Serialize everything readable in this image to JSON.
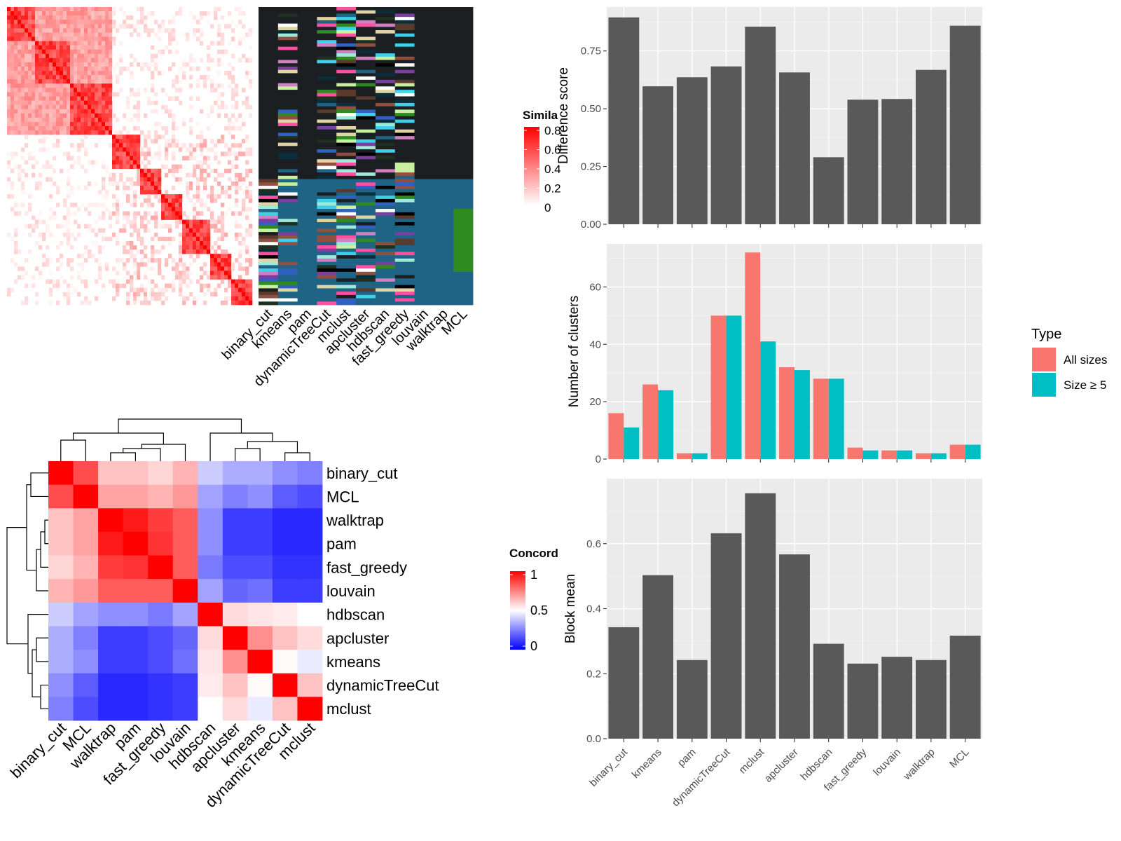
{
  "chart_data": [
    {
      "type": "heatmap",
      "panel": "similarity-heatmap",
      "legend": {
        "title": "Simila",
        "ticks": [
          "0.8",
          "0.6",
          "0.4",
          "0.2",
          "0"
        ],
        "colors": [
          "#ffffff",
          "#ff0000"
        ]
      },
      "annotation_columns": [
        "binary_cut",
        "kmeans",
        "pam",
        "dynamicTreeCut",
        "mclust",
        "apcluster",
        "hdbscan",
        "fast_greedy",
        "louvain",
        "walktrap",
        "MCL"
      ]
    },
    {
      "type": "heatmap",
      "panel": "concordance-heatmap",
      "legend": {
        "title": "Concord",
        "ticks": [
          "1",
          "0.5",
          "0"
        ],
        "colors": [
          "#0000ff",
          "#ffffff",
          "#ff0000"
        ]
      },
      "rows": [
        "binary_cut",
        "MCL",
        "walktrap",
        "pam",
        "fast_greedy",
        "louvain",
        "hdbscan",
        "apcluster",
        "kmeans",
        "dynamicTreeCut",
        "mclust"
      ],
      "columns": [
        "binary_cut",
        "MCL",
        "walktrap",
        "pam",
        "fast_greedy",
        "louvain",
        "hdbscan",
        "apcluster",
        "kmeans",
        "dynamicTreeCut",
        "mclust"
      ],
      "values": [
        [
          1.0,
          0.85,
          0.62,
          0.62,
          0.58,
          0.65,
          0.4,
          0.34,
          0.34,
          0.28,
          0.25
        ],
        [
          0.85,
          1.0,
          0.68,
          0.68,
          0.65,
          0.7,
          0.32,
          0.25,
          0.28,
          0.18,
          0.15
        ],
        [
          0.62,
          0.68,
          1.0,
          0.95,
          0.88,
          0.82,
          0.28,
          0.12,
          0.12,
          0.08,
          0.08
        ],
        [
          0.62,
          0.68,
          0.95,
          1.0,
          0.9,
          0.82,
          0.28,
          0.12,
          0.12,
          0.08,
          0.08
        ],
        [
          0.58,
          0.65,
          0.88,
          0.9,
          1.0,
          0.82,
          0.24,
          0.15,
          0.15,
          0.1,
          0.1
        ],
        [
          0.65,
          0.7,
          0.82,
          0.82,
          0.82,
          1.0,
          0.32,
          0.2,
          0.22,
          0.12,
          0.12
        ],
        [
          0.4,
          0.32,
          0.28,
          0.28,
          0.24,
          0.32,
          1.0,
          0.57,
          0.55,
          0.54,
          0.5
        ],
        [
          0.34,
          0.25,
          0.12,
          0.12,
          0.15,
          0.2,
          0.57,
          1.0,
          0.72,
          0.62,
          0.57
        ],
        [
          0.34,
          0.28,
          0.12,
          0.12,
          0.15,
          0.22,
          0.55,
          0.72,
          1.0,
          0.51,
          0.46
        ],
        [
          0.28,
          0.18,
          0.08,
          0.08,
          0.1,
          0.12,
          0.54,
          0.62,
          0.51,
          1.0,
          0.62
        ],
        [
          0.25,
          0.15,
          0.08,
          0.08,
          0.1,
          0.12,
          0.5,
          0.57,
          0.46,
          0.62,
          1.0
        ]
      ]
    },
    {
      "type": "bar",
      "panel": "difference-score",
      "categories": [
        "binary_cut",
        "kmeans",
        "pam",
        "dynamicTreeCut",
        "mclust",
        "apcluster",
        "hdbscan",
        "fast_greedy",
        "louvain",
        "walktrap",
        "MCL"
      ],
      "values": [
        0.895,
        0.597,
        0.636,
        0.683,
        0.855,
        0.657,
        0.29,
        0.539,
        0.542,
        0.668,
        0.859
      ],
      "ylabel": "Difference score",
      "ylim": [
        0,
        0.94
      ],
      "yticks": [
        "0.00",
        "0.25",
        "0.50",
        "0.75"
      ]
    },
    {
      "type": "bar",
      "panel": "number-of-clusters",
      "categories": [
        "binary_cut",
        "kmeans",
        "pam",
        "dynamicTreeCut",
        "mclust",
        "apcluster",
        "hdbscan",
        "fast_greedy",
        "louvain",
        "walktrap",
        "MCL"
      ],
      "series": [
        {
          "name": "All sizes",
          "color": "#F8766D",
          "values": [
            16,
            26,
            2,
            50,
            72,
            32,
            28,
            4,
            3,
            2,
            5
          ]
        },
        {
          "name": "Size ≥ 5",
          "color": "#00BFC4",
          "values": [
            11,
            24,
            2,
            50,
            41,
            31,
            28,
            3,
            3,
            2,
            5
          ]
        }
      ],
      "ylabel": "Number of clusters",
      "ylim": [
        0,
        75
      ],
      "yticks": [
        "0",
        "20",
        "40",
        "60"
      ],
      "legend": {
        "title": "Type",
        "position": "right"
      }
    },
    {
      "type": "bar",
      "panel": "block-mean",
      "categories": [
        "binary_cut",
        "kmeans",
        "pam",
        "dynamicTreeCut",
        "mclust",
        "apcluster",
        "hdbscan",
        "fast_greedy",
        "louvain",
        "walktrap",
        "MCL"
      ],
      "values": [
        0.343,
        0.503,
        0.242,
        0.632,
        0.755,
        0.567,
        0.292,
        0.231,
        0.252,
        0.242,
        0.317
      ],
      "ylabel": "Block mean",
      "ylim": [
        0,
        0.8
      ],
      "yticks": [
        "0.0",
        "0.2",
        "0.4",
        "0.6"
      ]
    }
  ]
}
